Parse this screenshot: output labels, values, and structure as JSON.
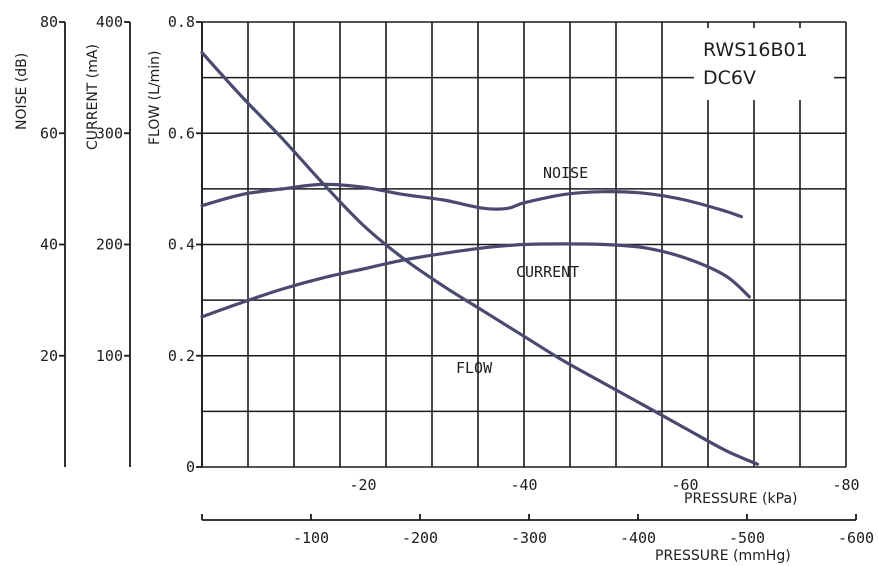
{
  "chart_data": {
    "type": "line",
    "model_label": [
      "RWS16B01",
      "DC6V"
    ],
    "x_axes": [
      {
        "label": "PRESSURE (kPa)",
        "ticks": [
          "-20",
          "-40",
          "-60",
          "-80"
        ],
        "range": [
          0,
          -80
        ]
      },
      {
        "label": "PRESSURE (mmHg)",
        "ticks": [
          "-100",
          "-200",
          "-300",
          "-400",
          "-500",
          "-600"
        ],
        "range": [
          0,
          -600
        ]
      }
    ],
    "y_axes": [
      {
        "label": "NOISE (dB)",
        "ticks": [
          "20",
          "40",
          "60",
          "80"
        ],
        "range": [
          0,
          80
        ]
      },
      {
        "label": "CURRENT (mA)",
        "ticks": [
          "100",
          "200",
          "300",
          "400"
        ],
        "range": [
          0,
          400
        ]
      },
      {
        "label": "FLOW (L/min)",
        "ticks": [
          "0",
          "0.2",
          "0.4",
          "0.6",
          "0.8"
        ],
        "range": [
          0,
          0.8
        ]
      }
    ],
    "series": [
      {
        "name": "FLOW",
        "unit": "L/min",
        "color": "#4a4970",
        "x_kpa": [
          0,
          -5,
          -10,
          -15,
          -20,
          -25,
          -30,
          -35,
          -40,
          -45,
          -50,
          -55,
          -60,
          -65,
          -69
        ],
        "values": [
          0.745,
          0.665,
          0.59,
          0.51,
          0.435,
          0.375,
          0.325,
          0.28,
          0.235,
          0.19,
          0.15,
          0.11,
          0.07,
          0.03,
          0.005
        ]
      },
      {
        "name": "NOISE",
        "unit": "dB",
        "color": "#4a4970",
        "x_kpa": [
          0,
          -5,
          -10,
          -15,
          -20,
          -25,
          -30,
          -35,
          -38,
          -40,
          -45,
          -50,
          -55,
          -60,
          -65,
          -67
        ],
        "values": [
          47,
          49,
          50,
          50.8,
          50.3,
          49,
          48,
          46.5,
          46.5,
          47.5,
          49,
          49.5,
          49.2,
          48,
          46,
          45
        ]
      },
      {
        "name": "CURRENT",
        "unit": "mA",
        "color": "#4a4970",
        "x_kpa": [
          0,
          -5,
          -10,
          -15,
          -20,
          -25,
          -30,
          -35,
          -40,
          -45,
          -50,
          -55,
          -60,
          -65,
          -68
        ],
        "values": [
          135,
          148,
          160,
          170,
          178,
          186,
          192,
          197,
          200,
          200.5,
          200,
          197,
          188,
          172,
          153
        ]
      }
    ],
    "curve_labels": [
      "NOISE",
      "CURRENT",
      "FLOW"
    ],
    "grid": true
  }
}
